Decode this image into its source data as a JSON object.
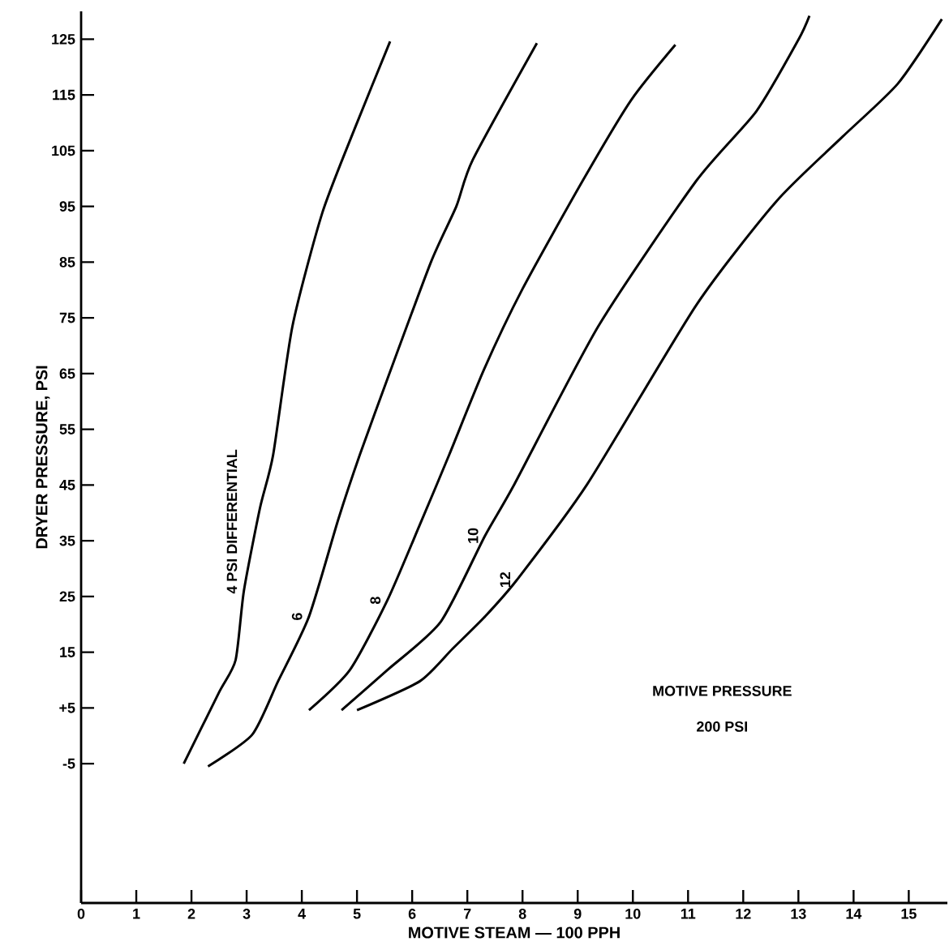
{
  "chart_data": {
    "type": "line",
    "xlabel": "MOTIVE STEAM — 100 PPH",
    "ylabel": "DRYER PRESSURE, PSI",
    "xlim": [
      0,
      15.7
    ],
    "ylim": [
      -30,
      130
    ],
    "xticks": [
      0,
      1,
      2,
      3,
      4,
      5,
      6,
      7,
      8,
      9,
      10,
      11,
      12,
      13,
      14,
      15
    ],
    "yticks": [
      -5,
      {
        "value": 5,
        "label": "+5"
      },
      15,
      25,
      35,
      45,
      55,
      65,
      75,
      85,
      95,
      105,
      115,
      125
    ],
    "grid": false,
    "legend": false,
    "marker": "none",
    "line_style": "solid",
    "series": [
      {
        "name": "4 PSI DIFFERENTIAL",
        "color": "#000000",
        "x": [
          1.86,
          2.5,
          2.8,
          2.95,
          3.24,
          3.48,
          3.83,
          4.37,
          4.96,
          5.6
        ],
        "values": [
          -5,
          7.8,
          13.6,
          26,
          40.8,
          50.4,
          73.5,
          93.8,
          109,
          124.6
        ]
      },
      {
        "name": "6",
        "color": "#000000",
        "x": [
          2.3,
          3.1,
          3.57,
          4.13,
          4.66,
          5.05,
          5.55,
          6.34,
          6.8,
          7.1,
          8.26
        ],
        "values": [
          -5.5,
          0.2,
          9.8,
          21.4,
          38.8,
          50.4,
          64,
          85,
          95,
          103.4,
          124.3
        ]
      },
      {
        "name": "8",
        "color": "#000000",
        "x": [
          4.13,
          4.87,
          5.55,
          6.14,
          6.67,
          7.3,
          8.0,
          9.09,
          9.97,
          10.77
        ],
        "values": [
          4.6,
          11.8,
          24.3,
          37.9,
          50.4,
          65.7,
          80.2,
          99.6,
          114.1,
          124
        ]
      },
      {
        "name": "10",
        "color": "#000000",
        "x": [
          4.72,
          5.55,
          6.52,
          7.32,
          7.85,
          9.38,
          11.15,
          12.24,
          13.0,
          13.2
        ],
        "values": [
          4.6,
          11.8,
          20.5,
          35.9,
          45.1,
          73.6,
          99.6,
          112.1,
          124.9,
          129.2
        ]
      },
      {
        "name": "12",
        "color": "#000000",
        "x": [
          5.0,
          6.14,
          6.73,
          7.32,
          7.9,
          9.17,
          11.15,
          12.6,
          13.8,
          14.8,
          15.6
        ],
        "values": [
          4.6,
          9.8,
          15.6,
          21.4,
          28,
          45.1,
          77.3,
          95.9,
          107.5,
          117,
          128.6
        ]
      }
    ],
    "annotations": [
      "MOTIVE PRESSURE",
      "200 PSI"
    ]
  }
}
